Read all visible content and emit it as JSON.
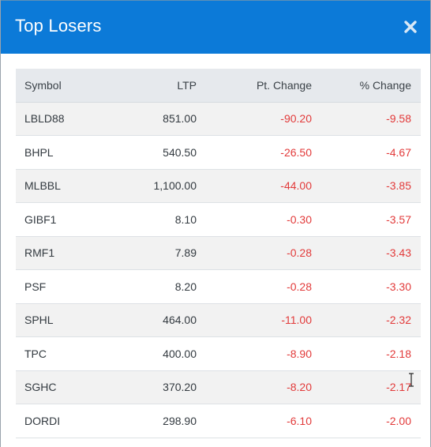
{
  "modal": {
    "title": "Top Losers",
    "close_icon": "close-icon"
  },
  "colors": {
    "header_bg": "#0c7ad8",
    "negative_text": "#e23a3a",
    "stripe": "#f2f2f2",
    "table_header_bg": "#e6e9ed"
  },
  "table": {
    "columns": {
      "symbol": "Symbol",
      "ltp": "LTP",
      "pt_change": "Pt. Change",
      "pct_change": "% Change"
    },
    "rows": [
      {
        "symbol": "LBLD88",
        "ltp": "851.00",
        "pt_change": "-90.20",
        "pct_change": "-9.58"
      },
      {
        "symbol": "BHPL",
        "ltp": "540.50",
        "pt_change": "-26.50",
        "pct_change": "-4.67"
      },
      {
        "symbol": "MLBBL",
        "ltp": "1,100.00",
        "pt_change": "-44.00",
        "pct_change": "-3.85"
      },
      {
        "symbol": "GIBF1",
        "ltp": "8.10",
        "pt_change": "-0.30",
        "pct_change": "-3.57"
      },
      {
        "symbol": "RMF1",
        "ltp": "7.89",
        "pt_change": "-0.28",
        "pct_change": "-3.43"
      },
      {
        "symbol": "PSF",
        "ltp": "8.20",
        "pt_change": "-0.28",
        "pct_change": "-3.30"
      },
      {
        "symbol": "SPHL",
        "ltp": "464.00",
        "pt_change": "-11.00",
        "pct_change": "-2.32"
      },
      {
        "symbol": "TPC",
        "ltp": "400.00",
        "pt_change": "-8.90",
        "pct_change": "-2.18"
      },
      {
        "symbol": "SGHC",
        "ltp": "370.20",
        "pt_change": "-8.20",
        "pct_change": "-2.17"
      },
      {
        "symbol": "DORDI",
        "ltp": "298.90",
        "pt_change": "-6.10",
        "pct_change": "-2.00"
      }
    ]
  }
}
